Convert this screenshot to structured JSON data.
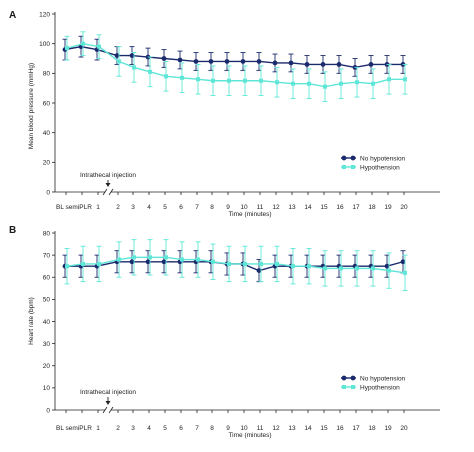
{
  "colors": {
    "no_hypotension": "#1a2a6c",
    "hypotension": "#5ee6d6",
    "axis": "#222222"
  },
  "chart_data": [
    {
      "type": "line",
      "panel_label": "A",
      "ylabel": "Mean blood pressure (mmHg)",
      "xlabel": "Time (minutes)",
      "ylim": [
        0,
        120
      ],
      "yticks": [
        0,
        20,
        40,
        60,
        80,
        100,
        120
      ],
      "x_categories": [
        "BL",
        "semiPLR",
        "1",
        "2",
        "3",
        "4",
        "5",
        "6",
        "7",
        "8",
        "9",
        "10",
        "11",
        "12",
        "13",
        "14",
        "15",
        "16",
        "17",
        "18",
        "19",
        "20"
      ],
      "x_tick_labels": [
        "BL semiPLR",
        "1",
        "2",
        "3",
        "4",
        "5",
        "6",
        "7",
        "8",
        "9",
        "10",
        "11",
        "12",
        "13",
        "14",
        "15",
        "16",
        "17",
        "18",
        "19",
        "20"
      ],
      "annotation": "Intrathecal injection",
      "legend_position": "right",
      "series": [
        {
          "name": "No hypotension",
          "values": [
            96,
            98,
            96,
            92,
            92,
            91,
            90,
            89,
            88,
            88,
            88,
            88,
            88,
            87,
            87,
            86,
            86,
            86,
            84,
            86,
            86,
            86
          ],
          "errors": [
            7,
            7,
            7,
            6,
            6,
            6,
            6,
            6,
            6,
            6,
            6,
            6,
            6,
            6,
            6,
            6,
            6,
            6,
            6,
            6,
            6,
            6
          ]
        },
        {
          "name": "Hypothension",
          "values": [
            97,
            100,
            98,
            88,
            84,
            81,
            78,
            77,
            76,
            75,
            75,
            75,
            75,
            74,
            73,
            73,
            71,
            73,
            74,
            73,
            76,
            76
          ],
          "errors": [
            8,
            8,
            8,
            10,
            10,
            10,
            10,
            10,
            10,
            10,
            10,
            10,
            10,
            10,
            10,
            10,
            10,
            10,
            10,
            10,
            10,
            10
          ]
        }
      ]
    },
    {
      "type": "line",
      "panel_label": "B",
      "ylabel": "Heart rate (bpm)",
      "xlabel": "Time (minutes)",
      "ylim": [
        0,
        80
      ],
      "yticks": [
        0,
        10,
        20,
        30,
        40,
        50,
        60,
        70,
        80
      ],
      "x_categories": [
        "BL",
        "semiPLR",
        "1",
        "2",
        "3",
        "4",
        "5",
        "6",
        "7",
        "8",
        "9",
        "10",
        "11",
        "12",
        "13",
        "14",
        "15",
        "16",
        "17",
        "18",
        "19",
        "20"
      ],
      "x_tick_labels": [
        "BL semiPLR",
        "1",
        "2",
        "3",
        "4",
        "5",
        "6",
        "7",
        "8",
        "9",
        "10",
        "11",
        "12",
        "13",
        "14",
        "15",
        "16",
        "17",
        "18",
        "19",
        "20"
      ],
      "annotation": "Intrathecal injection",
      "legend_position": "right",
      "series": [
        {
          "name": "No hypotension",
          "values": [
            65,
            65,
            65,
            67,
            67,
            67,
            67,
            67,
            67,
            67,
            66,
            66,
            63,
            65,
            65,
            65,
            65,
            65,
            65,
            65,
            65,
            67
          ],
          "errors": [
            5,
            5,
            5,
            5,
            5,
            5,
            5,
            5,
            5,
            5,
            5,
            5,
            5,
            5,
            5,
            5,
            5,
            5,
            5,
            5,
            5,
            5
          ]
        },
        {
          "name": "Hypothension",
          "values": [
            65,
            66,
            66,
            68,
            69,
            69,
            69,
            68,
            68,
            67,
            66,
            66,
            66,
            66,
            65,
            65,
            64,
            64,
            64,
            64,
            63,
            62
          ],
          "errors": [
            8,
            8,
            8,
            8,
            8,
            8,
            8,
            8,
            8,
            8,
            8,
            8,
            8,
            8,
            8,
            8,
            8,
            8,
            8,
            8,
            8,
            8
          ]
        }
      ]
    }
  ]
}
